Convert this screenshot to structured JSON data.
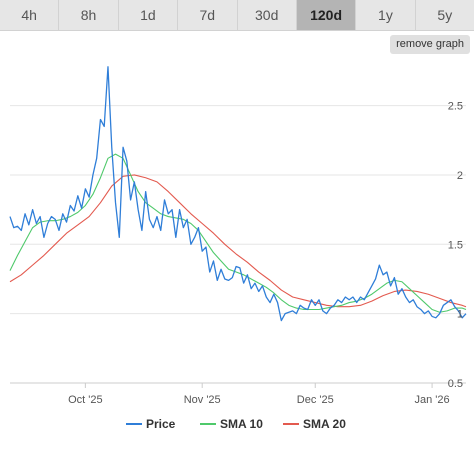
{
  "tabs": [
    {
      "label": "4h",
      "active": false
    },
    {
      "label": "8h",
      "active": false
    },
    {
      "label": "1d",
      "active": false
    },
    {
      "label": "7d",
      "active": false
    },
    {
      "label": "30d",
      "active": false
    },
    {
      "label": "120d",
      "active": true
    },
    {
      "label": "1y",
      "active": false
    },
    {
      "label": "5y",
      "active": false
    }
  ],
  "remove_graph_label": "remove graph",
  "colors": {
    "price": "#2f7ed8",
    "sma10": "#4fc96b",
    "sma20": "#e35a4f",
    "grid": "#e6e6e6",
    "active_tab": "#b4b4b4"
  },
  "chart_data": {
    "type": "line",
    "x_range": [
      "2025-09-11",
      "2026-01-10"
    ],
    "ylim": [
      0.5,
      2.8
    ],
    "y_ticks": [
      0.5,
      1,
      1.5,
      2,
      2.5
    ],
    "y_tick_labels": [
      "0.5",
      "1",
      "1.5",
      "2",
      "2.5"
    ],
    "x_ticks": [
      {
        "date": "2025-10-01",
        "label": "Oct '25"
      },
      {
        "date": "2025-11-01",
        "label": "Nov '25"
      },
      {
        "date": "2025-12-01",
        "label": "Dec '25"
      },
      {
        "date": "2026-01-01",
        "label": "Jan '26"
      }
    ],
    "grid": "horizontal",
    "legend_position": "bottom",
    "series": [
      {
        "name": "Price",
        "color": "#2f7ed8",
        "points": [
          [
            "2025-09-11",
            1.7
          ],
          [
            "2025-09-12",
            1.62
          ],
          [
            "2025-09-13",
            1.63
          ],
          [
            "2025-09-14",
            1.6
          ],
          [
            "2025-09-15",
            1.72
          ],
          [
            "2025-09-16",
            1.64
          ],
          [
            "2025-09-17",
            1.75
          ],
          [
            "2025-09-18",
            1.65
          ],
          [
            "2025-09-19",
            1.7
          ],
          [
            "2025-09-20",
            1.55
          ],
          [
            "2025-09-21",
            1.65
          ],
          [
            "2025-09-22",
            1.7
          ],
          [
            "2025-09-23",
            1.68
          ],
          [
            "2025-09-24",
            1.6
          ],
          [
            "2025-09-25",
            1.72
          ],
          [
            "2025-09-26",
            1.66
          ],
          [
            "2025-09-27",
            1.78
          ],
          [
            "2025-09-28",
            1.74
          ],
          [
            "2025-09-29",
            1.85
          ],
          [
            "2025-09-30",
            1.76
          ],
          [
            "2025-10-01",
            1.9
          ],
          [
            "2025-10-02",
            1.84
          ],
          [
            "2025-10-03",
            2.0
          ],
          [
            "2025-10-04",
            2.12
          ],
          [
            "2025-10-05",
            2.4
          ],
          [
            "2025-10-06",
            2.35
          ],
          [
            "2025-10-07",
            2.78
          ],
          [
            "2025-10-08",
            2.2
          ],
          [
            "2025-10-09",
            1.8
          ],
          [
            "2025-10-10",
            1.55
          ],
          [
            "2025-10-11",
            2.2
          ],
          [
            "2025-10-12",
            2.1
          ],
          [
            "2025-10-13",
            1.82
          ],
          [
            "2025-10-14",
            1.95
          ],
          [
            "2025-10-15",
            1.75
          ],
          [
            "2025-10-16",
            1.6
          ],
          [
            "2025-10-17",
            1.88
          ],
          [
            "2025-10-18",
            1.68
          ],
          [
            "2025-10-19",
            1.62
          ],
          [
            "2025-10-20",
            1.7
          ],
          [
            "2025-10-21",
            1.6
          ],
          [
            "2025-10-22",
            1.82
          ],
          [
            "2025-10-23",
            1.72
          ],
          [
            "2025-10-24",
            1.75
          ],
          [
            "2025-10-25",
            1.55
          ],
          [
            "2025-10-26",
            1.75
          ],
          [
            "2025-10-27",
            1.62
          ],
          [
            "2025-10-28",
            1.68
          ],
          [
            "2025-10-29",
            1.5
          ],
          [
            "2025-10-30",
            1.55
          ],
          [
            "2025-10-31",
            1.62
          ],
          [
            "2025-11-01",
            1.45
          ],
          [
            "2025-11-02",
            1.48
          ],
          [
            "2025-11-03",
            1.3
          ],
          [
            "2025-11-04",
            1.38
          ],
          [
            "2025-11-05",
            1.24
          ],
          [
            "2025-11-06",
            1.32
          ],
          [
            "2025-11-07",
            1.25
          ],
          [
            "2025-11-08",
            1.24
          ],
          [
            "2025-11-09",
            1.26
          ],
          [
            "2025-11-10",
            1.34
          ],
          [
            "2025-11-11",
            1.33
          ],
          [
            "2025-11-12",
            1.22
          ],
          [
            "2025-11-13",
            1.28
          ],
          [
            "2025-11-14",
            1.18
          ],
          [
            "2025-11-15",
            1.22
          ],
          [
            "2025-11-16",
            1.16
          ],
          [
            "2025-11-17",
            1.2
          ],
          [
            "2025-11-18",
            1.12
          ],
          [
            "2025-11-19",
            1.08
          ],
          [
            "2025-11-20",
            1.14
          ],
          [
            "2025-11-21",
            1.08
          ],
          [
            "2025-11-22",
            0.95
          ],
          [
            "2025-11-23",
            1.0
          ],
          [
            "2025-11-24",
            1.01
          ],
          [
            "2025-11-25",
            1.02
          ],
          [
            "2025-11-26",
            1.0
          ],
          [
            "2025-11-27",
            1.06
          ],
          [
            "2025-11-28",
            1.04
          ],
          [
            "2025-11-29",
            1.03
          ],
          [
            "2025-11-30",
            1.1
          ],
          [
            "2025-12-01",
            1.06
          ],
          [
            "2025-12-02",
            1.1
          ],
          [
            "2025-12-03",
            1.02
          ],
          [
            "2025-12-04",
            1.0
          ],
          [
            "2025-12-05",
            1.04
          ],
          [
            "2025-12-06",
            1.06
          ],
          [
            "2025-12-07",
            1.1
          ],
          [
            "2025-12-08",
            1.08
          ],
          [
            "2025-12-09",
            1.12
          ],
          [
            "2025-12-10",
            1.1
          ],
          [
            "2025-12-11",
            1.12
          ],
          [
            "2025-12-12",
            1.08
          ],
          [
            "2025-12-13",
            1.12
          ],
          [
            "2025-12-14",
            1.1
          ],
          [
            "2025-12-15",
            1.15
          ],
          [
            "2025-12-16",
            1.2
          ],
          [
            "2025-12-17",
            1.25
          ],
          [
            "2025-12-18",
            1.35
          ],
          [
            "2025-12-19",
            1.28
          ],
          [
            "2025-12-20",
            1.3
          ],
          [
            "2025-12-21",
            1.2
          ],
          [
            "2025-12-22",
            1.26
          ],
          [
            "2025-12-23",
            1.14
          ],
          [
            "2025-12-24",
            1.18
          ],
          [
            "2025-12-25",
            1.12
          ],
          [
            "2025-12-26",
            1.08
          ],
          [
            "2025-12-27",
            1.1
          ],
          [
            "2025-12-28",
            1.05
          ],
          [
            "2025-12-29",
            1.03
          ],
          [
            "2025-12-30",
            1.0
          ],
          [
            "2025-12-31",
            1.02
          ],
          [
            "2026-01-01",
            0.98
          ],
          [
            "2026-01-02",
            0.97
          ],
          [
            "2026-01-03",
            1.0
          ],
          [
            "2026-01-04",
            1.06
          ],
          [
            "2026-01-05",
            1.08
          ],
          [
            "2026-01-06",
            1.1
          ],
          [
            "2026-01-07",
            1.05
          ],
          [
            "2026-01-08",
            1.02
          ],
          [
            "2026-01-09",
            0.97
          ],
          [
            "2026-01-10",
            1.0
          ]
        ]
      },
      {
        "name": "SMA 10",
        "color": "#4fc96b",
        "points": [
          [
            "2025-09-11",
            1.31
          ],
          [
            "2025-09-13",
            1.42
          ],
          [
            "2025-09-15",
            1.52
          ],
          [
            "2025-09-17",
            1.62
          ],
          [
            "2025-09-19",
            1.66
          ],
          [
            "2025-09-21",
            1.67
          ],
          [
            "2025-09-23",
            1.67
          ],
          [
            "2025-09-25",
            1.68
          ],
          [
            "2025-09-27",
            1.7
          ],
          [
            "2025-09-29",
            1.73
          ],
          [
            "2025-10-01",
            1.78
          ],
          [
            "2025-10-03",
            1.86
          ],
          [
            "2025-10-05",
            1.98
          ],
          [
            "2025-10-07",
            2.12
          ],
          [
            "2025-10-09",
            2.15
          ],
          [
            "2025-10-11",
            2.12
          ],
          [
            "2025-10-13",
            2.0
          ],
          [
            "2025-10-15",
            1.88
          ],
          [
            "2025-10-17",
            1.8
          ],
          [
            "2025-10-19",
            1.76
          ],
          [
            "2025-10-21",
            1.72
          ],
          [
            "2025-10-23",
            1.7
          ],
          [
            "2025-10-25",
            1.69
          ],
          [
            "2025-10-27",
            1.68
          ],
          [
            "2025-10-29",
            1.65
          ],
          [
            "2025-10-31",
            1.6
          ],
          [
            "2025-11-02",
            1.52
          ],
          [
            "2025-11-04",
            1.44
          ],
          [
            "2025-11-06",
            1.38
          ],
          [
            "2025-11-08",
            1.32
          ],
          [
            "2025-11-10",
            1.3
          ],
          [
            "2025-11-12",
            1.28
          ],
          [
            "2025-11-14",
            1.25
          ],
          [
            "2025-11-16",
            1.22
          ],
          [
            "2025-11-18",
            1.19
          ],
          [
            "2025-11-20",
            1.15
          ],
          [
            "2025-11-22",
            1.1
          ],
          [
            "2025-11-24",
            1.06
          ],
          [
            "2025-11-26",
            1.04
          ],
          [
            "2025-11-28",
            1.03
          ],
          [
            "2025-11-30",
            1.03
          ],
          [
            "2025-12-02",
            1.03
          ],
          [
            "2025-12-04",
            1.04
          ],
          [
            "2025-12-06",
            1.05
          ],
          [
            "2025-12-08",
            1.06
          ],
          [
            "2025-12-10",
            1.08
          ],
          [
            "2025-12-12",
            1.09
          ],
          [
            "2025-12-14",
            1.11
          ],
          [
            "2025-12-16",
            1.14
          ],
          [
            "2025-12-18",
            1.18
          ],
          [
            "2025-12-20",
            1.22
          ],
          [
            "2025-12-22",
            1.24
          ],
          [
            "2025-12-24",
            1.23
          ],
          [
            "2025-12-26",
            1.18
          ],
          [
            "2025-12-28",
            1.13
          ],
          [
            "2025-12-30",
            1.08
          ],
          [
            "2026-01-01",
            1.03
          ],
          [
            "2026-01-03",
            1.01
          ],
          [
            "2026-01-05",
            1.02
          ],
          [
            "2026-01-07",
            1.04
          ],
          [
            "2026-01-09",
            1.04
          ],
          [
            "2026-01-10",
            1.03
          ]
        ]
      },
      {
        "name": "SMA 20",
        "color": "#e35a4f",
        "points": [
          [
            "2025-09-11",
            1.23
          ],
          [
            "2025-09-14",
            1.28
          ],
          [
            "2025-09-17",
            1.35
          ],
          [
            "2025-09-20",
            1.42
          ],
          [
            "2025-09-23",
            1.5
          ],
          [
            "2025-09-26",
            1.58
          ],
          [
            "2025-09-29",
            1.64
          ],
          [
            "2025-10-02",
            1.7
          ],
          [
            "2025-10-05",
            1.8
          ],
          [
            "2025-10-08",
            1.92
          ],
          [
            "2025-10-11",
            1.99
          ],
          [
            "2025-10-14",
            2.0
          ],
          [
            "2025-10-17",
            1.98
          ],
          [
            "2025-10-20",
            1.95
          ],
          [
            "2025-10-23",
            1.88
          ],
          [
            "2025-10-26",
            1.8
          ],
          [
            "2025-10-29",
            1.72
          ],
          [
            "2025-11-01",
            1.65
          ],
          [
            "2025-11-04",
            1.58
          ],
          [
            "2025-11-07",
            1.5
          ],
          [
            "2025-11-10",
            1.43
          ],
          [
            "2025-11-13",
            1.37
          ],
          [
            "2025-11-16",
            1.3
          ],
          [
            "2025-11-19",
            1.24
          ],
          [
            "2025-11-22",
            1.17
          ],
          [
            "2025-11-25",
            1.12
          ],
          [
            "2025-11-28",
            1.1
          ],
          [
            "2025-12-01",
            1.08
          ],
          [
            "2025-12-04",
            1.06
          ],
          [
            "2025-12-07",
            1.05
          ],
          [
            "2025-12-10",
            1.05
          ],
          [
            "2025-12-13",
            1.06
          ],
          [
            "2025-12-16",
            1.09
          ],
          [
            "2025-12-19",
            1.13
          ],
          [
            "2025-12-22",
            1.16
          ],
          [
            "2025-12-25",
            1.17
          ],
          [
            "2025-12-28",
            1.16
          ],
          [
            "2025-12-31",
            1.14
          ],
          [
            "2026-01-03",
            1.11
          ],
          [
            "2026-01-06",
            1.08
          ],
          [
            "2026-01-09",
            1.06
          ],
          [
            "2026-01-10",
            1.05
          ]
        ]
      }
    ]
  }
}
